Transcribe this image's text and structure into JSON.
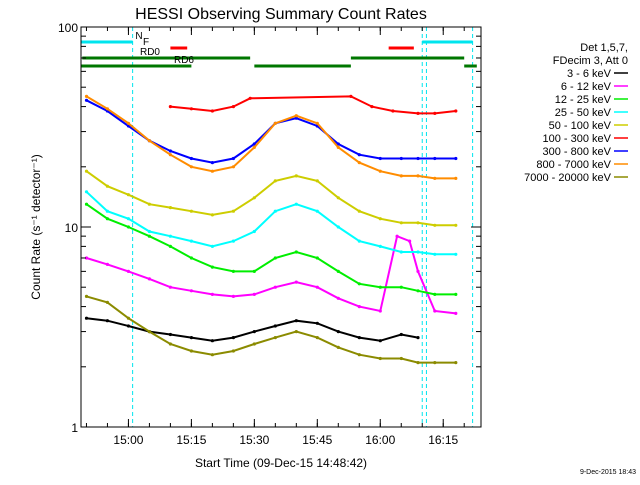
{
  "chart_data": {
    "type": "line",
    "title": "HESSI Observing Summary Count Rates",
    "xlabel": "Start Time (09-Dec-15 14:48:42)",
    "ylabel": "Count Rate (s⁻¹ detector⁻¹)",
    "yscale": "log",
    "ylim": [
      1,
      100
    ],
    "xlim": [
      "14:48:42",
      "16:24:00"
    ],
    "y_ticks": [
      "1",
      "10",
      "100"
    ],
    "x_ticks": [
      "15:00",
      "15:15",
      "15:30",
      "15:45",
      "16:00",
      "16:15"
    ],
    "grid": false,
    "legend_header": [
      "Det 1,5,7,",
      "FDecim 3, Att 0"
    ],
    "legend_position": "right",
    "timestamp": "9-Dec-2015 18:43",
    "flags": [
      {
        "label": "N",
        "color": "#00e5ee",
        "segments": [
          [
            "14:48",
            "15:01"
          ],
          [
            "16:10",
            "16:22"
          ]
        ]
      },
      {
        "label": "F",
        "color": "#ff0000",
        "segments": [
          [
            "15:10",
            "15:14"
          ],
          [
            "16:02",
            "16:08"
          ]
        ]
      },
      {
        "label": "RD0",
        "color": "#007700",
        "segments": [
          [
            "14:49",
            "15:29"
          ],
          [
            "15:53",
            "16:20"
          ]
        ]
      },
      {
        "label": "RD6",
        "color": "#007700",
        "segments": [
          [
            "14:48",
            "15:15"
          ],
          [
            "15:30",
            "15:53"
          ],
          [
            "16:20",
            "16:23"
          ]
        ]
      }
    ],
    "saa_lines": [
      "15:01",
      "16:10"
    ],
    "night_lines": [
      "16:11",
      "16:22"
    ],
    "series": [
      {
        "name": "3 - 6 keV",
        "color": "#000000",
        "x": [
          "14:50",
          "14:55",
          "15:00",
          "15:05",
          "15:10",
          "15:15",
          "15:20",
          "15:25",
          "15:30",
          "15:35",
          "15:40",
          "15:45",
          "15:50",
          "15:55",
          "16:00",
          "16:05",
          "16:09"
        ],
        "y": [
          3.5,
          3.4,
          3.2,
          3.0,
          2.9,
          2.8,
          2.7,
          2.8,
          3.0,
          3.2,
          3.4,
          3.3,
          3.0,
          2.8,
          2.7,
          2.9,
          2.8
        ]
      },
      {
        "name": "6 - 12 keV",
        "color": "#ff00ff",
        "x": [
          "14:50",
          "14:55",
          "15:00",
          "15:05",
          "15:10",
          "15:15",
          "15:20",
          "15:25",
          "15:30",
          "15:35",
          "15:40",
          "15:45",
          "15:50",
          "15:55",
          "16:00",
          "16:04",
          "16:07",
          "16:09",
          "16:13",
          "16:18"
        ],
        "y": [
          7.0,
          6.5,
          6.0,
          5.5,
          5.0,
          4.8,
          4.6,
          4.5,
          4.6,
          5.0,
          5.3,
          5.0,
          4.4,
          4.0,
          3.8,
          9.0,
          8.5,
          6.0,
          3.8,
          3.7
        ]
      },
      {
        "name": "12 - 25 keV",
        "color": "#00ee00",
        "x": [
          "14:50",
          "14:55",
          "15:00",
          "15:05",
          "15:10",
          "15:15",
          "15:20",
          "15:25",
          "15:30",
          "15:35",
          "15:40",
          "15:45",
          "15:50",
          "15:55",
          "16:00",
          "16:05",
          "16:09",
          "16:13",
          "16:18"
        ],
        "y": [
          13.0,
          11.0,
          10.0,
          9.0,
          8.0,
          7.0,
          6.3,
          6.0,
          6.0,
          7.0,
          7.5,
          7.0,
          6.0,
          5.2,
          5.0,
          5.0,
          4.8,
          4.6,
          4.6
        ]
      },
      {
        "name": "25 - 50 keV",
        "color": "#00ffff",
        "x": [
          "14:50",
          "14:55",
          "15:00",
          "15:05",
          "15:10",
          "15:15",
          "15:20",
          "15:25",
          "15:30",
          "15:35",
          "15:40",
          "15:45",
          "15:50",
          "15:55",
          "16:00",
          "16:05",
          "16:09",
          "16:13",
          "16:18"
        ],
        "y": [
          15.0,
          12.0,
          11.0,
          9.5,
          9.0,
          8.5,
          8.0,
          8.5,
          9.5,
          12.0,
          13.0,
          12.0,
          10.0,
          8.5,
          8.0,
          7.5,
          7.5,
          7.3,
          7.3
        ]
      },
      {
        "name": "50 - 100 keV",
        "color": "#cdcd00",
        "x": [
          "14:50",
          "14:55",
          "15:00",
          "15:05",
          "15:10",
          "15:15",
          "15:20",
          "15:25",
          "15:30",
          "15:35",
          "15:40",
          "15:45",
          "15:50",
          "15:55",
          "16:00",
          "16:05",
          "16:09",
          "16:13",
          "16:18"
        ],
        "y": [
          19.0,
          16.0,
          14.5,
          13.0,
          12.5,
          12.0,
          11.5,
          12.0,
          14.0,
          17.0,
          18.0,
          17.0,
          14.0,
          12.0,
          11.0,
          10.5,
          10.5,
          10.2,
          10.2
        ]
      },
      {
        "name": "100 - 300 keV",
        "color": "#ff0000",
        "x": [
          "15:10",
          "15:15",
          "15:20",
          "15:25",
          "15:29",
          "15:53",
          "15:58",
          "16:03",
          "16:09",
          "16:13",
          "16:18"
        ],
        "y": [
          40.0,
          39.0,
          38.0,
          40.0,
          44.0,
          45.0,
          40.0,
          38.0,
          37.0,
          37.0,
          38.0
        ]
      },
      {
        "name": "300 - 800 keV",
        "color": "#0000ff",
        "x": [
          "14:50",
          "14:55",
          "15:00",
          "15:05",
          "15:10",
          "15:15",
          "15:20",
          "15:25",
          "15:30",
          "15:35",
          "15:40",
          "15:45",
          "15:50",
          "15:55",
          "16:00",
          "16:05",
          "16:09",
          "16:13",
          "16:18"
        ],
        "y": [
          43.0,
          38.0,
          32.0,
          27.0,
          24.0,
          22.0,
          21.0,
          22.0,
          26.0,
          33.0,
          35.0,
          32.0,
          26.0,
          23.0,
          22.0,
          22.0,
          22.0,
          22.0,
          22.0
        ]
      },
      {
        "name": "800 - 7000 keV",
        "color": "#ff8c00",
        "x": [
          "14:50",
          "14:55",
          "15:00",
          "15:05",
          "15:10",
          "15:15",
          "15:20",
          "15:25",
          "15:30",
          "15:35",
          "15:40",
          "15:45",
          "15:50",
          "15:55",
          "16:00",
          "16:05",
          "16:09",
          "16:13",
          "16:18"
        ],
        "y": [
          45.0,
          39.0,
          33.0,
          27.0,
          23.0,
          20.0,
          19.0,
          20.0,
          25.0,
          33.0,
          36.0,
          33.0,
          25.0,
          21.0,
          19.0,
          18.0,
          18.0,
          17.5,
          17.5
        ]
      },
      {
        "name": "7000 - 20000 keV",
        "color": "#8b8b00",
        "x": [
          "14:50",
          "14:55",
          "15:00",
          "15:05",
          "15:10",
          "15:15",
          "15:20",
          "15:25",
          "15:30",
          "15:35",
          "15:40",
          "15:45",
          "15:50",
          "15:55",
          "16:00",
          "16:05",
          "16:09",
          "16:13",
          "16:18"
        ],
        "y": [
          4.5,
          4.2,
          3.5,
          3.0,
          2.6,
          2.4,
          2.3,
          2.4,
          2.6,
          2.8,
          3.0,
          2.8,
          2.5,
          2.3,
          2.2,
          2.2,
          2.1,
          2.1,
          2.1
        ]
      }
    ]
  }
}
